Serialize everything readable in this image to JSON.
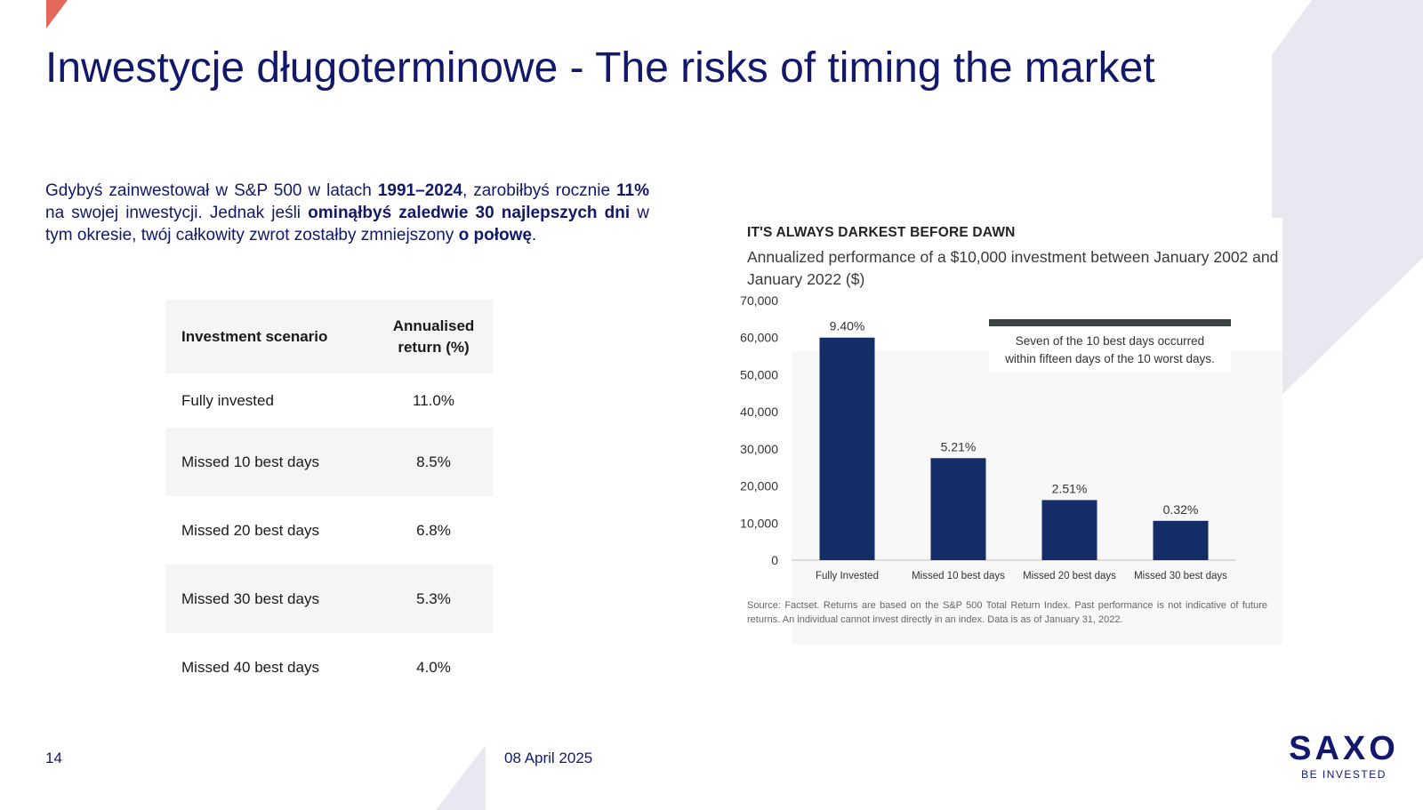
{
  "slide": {
    "title": "Inwestycje długoterminowe - The risks of timing the market",
    "page_number": "14",
    "date": "08 April 2025"
  },
  "intro": {
    "t1": "Gdybyś zainwestował w S&P 500 w latach ",
    "b1": "1991–2024",
    "t2": ", zarobiłbyś rocznie ",
    "b2": "11%",
    "t3": " na swojej inwestycji. Jednak jeśli ",
    "b3": "ominąłbyś zaledwie 30 najlepszych dni",
    "t4": " w tym okresie, twój całkowity zwrot zostałby zmniejszony ",
    "b4": "o połowę",
    "t5": "."
  },
  "table": {
    "headers": [
      "Investment scenario",
      "Annualised return (%)"
    ],
    "rows": [
      [
        "Fully invested",
        "11.0%"
      ],
      [
        "Missed 10 best days",
        "8.5%"
      ],
      [
        "Missed 20 best days",
        "6.8%"
      ],
      [
        "Missed 30 best days",
        "5.3%"
      ],
      [
        "Missed 40 best days",
        "4.0%"
      ]
    ]
  },
  "chart_data": {
    "type": "bar",
    "heading": "IT'S ALWAYS DARKEST BEFORE DAWN",
    "title": "Annualized performance of a $10,000 investment between January 2002 and January 2022 ($)",
    "categories": [
      "Fully Invested",
      "Missed 10 best days",
      "Missed 20 best days",
      "Missed 30 best days"
    ],
    "values": [
      60000,
      27500,
      16200,
      10600
    ],
    "data_labels": [
      "9.40%",
      "5.21%",
      "2.51%",
      "0.32%"
    ],
    "yticks": [
      "0",
      "10,000",
      "20,000",
      "30,000",
      "40,000",
      "50,000",
      "60,000",
      "70,000"
    ],
    "ylim": [
      0,
      70000
    ],
    "annotation": [
      "Seven of the 10 best days occurred",
      "within fifteen days of the 10 worst days."
    ],
    "source": "Source: Factset. Returns are based on the S&P 500 Total Return Index. Past performance is not indicative of future returns. An individual cannot invest directly in an index. Data is as of January 31, 2022.",
    "bar_color": "#142c67"
  },
  "logo": {
    "word": "SAXO",
    "tagline": "BE INVESTED"
  },
  "colors": {
    "brand_navy": "#12186b",
    "accent_red": "#e4685a",
    "deco_gray": "#e8e9f0"
  }
}
